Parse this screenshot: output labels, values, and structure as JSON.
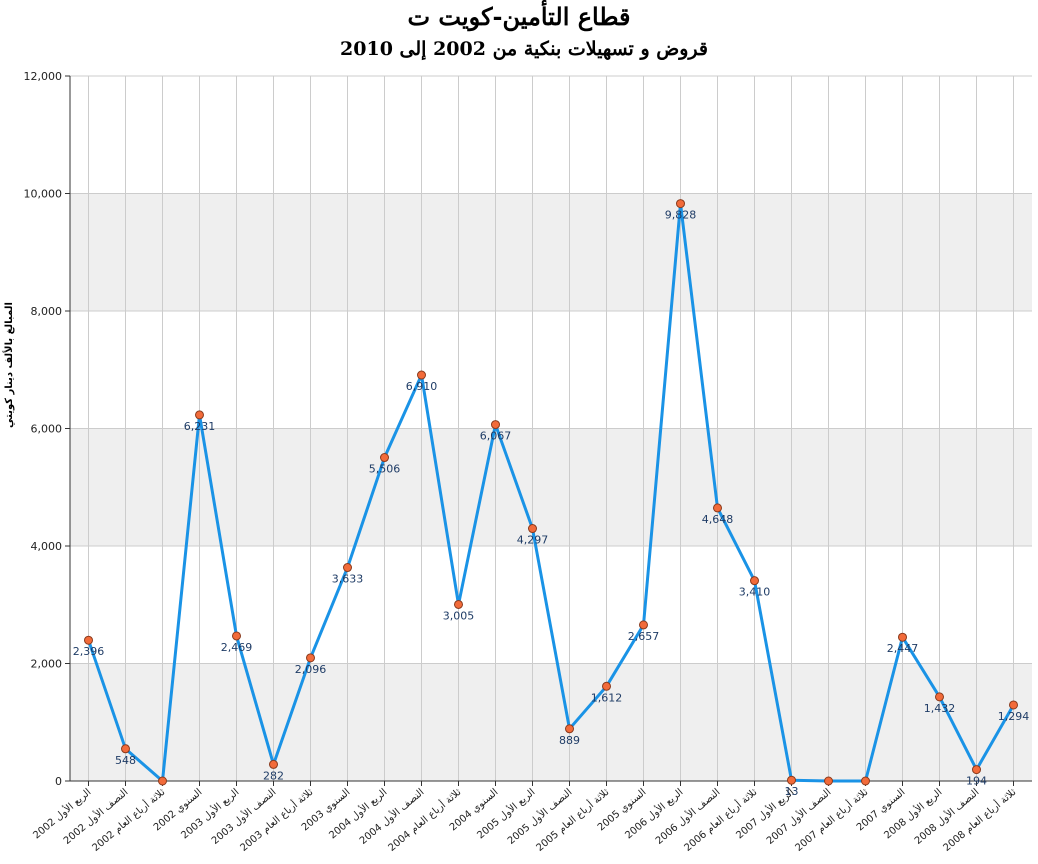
{
  "chart_data": {
    "type": "line",
    "title": "قطاع التأمين-كويت ت",
    "subtitle": "قروض و تسهيلات بنكية من 2002 إلى 2010",
    "ylabel": "المبالغ بالألف دينار كويتي",
    "xlabel": "",
    "ylim": [
      0,
      12000
    ],
    "yticks": [
      0,
      2000,
      4000,
      6000,
      8000,
      10000,
      12000
    ],
    "ytick_labels": [
      "0",
      "2,000",
      "4,000",
      "6,000",
      "8,000",
      "10,000",
      "12,000"
    ],
    "grid": true,
    "legend": "none",
    "colors": {
      "line": "#1a93e6",
      "marker_fill": "#f26b3a",
      "marker_stroke": "#8a3a1c",
      "label": "#1f3c66",
      "band": "#efefef",
      "grid": "#cccccc"
    },
    "categories": [
      "الربع الأول 2002",
      "النصف الأول 2002",
      "ثلاثة أرباع العام 2002",
      "السنوي 2002",
      "الربع الأول 2003",
      "النصف الأول 2003",
      "ثلاثة أرباع العام 2003",
      "السنوي 2003",
      "الربع الأول 2004",
      "النصف الأول 2004",
      "ثلاثة أرباع العام 2004",
      "السنوي 2004",
      "الربع الأول 2005",
      "النصف الأول 2005",
      "ثلاثة أرباع العام 2005",
      "السنوي 2005",
      "الربع الأول 2006",
      "النصف الأول 2006",
      "ثلاثة أرباع العام 2006",
      "الربع الأول 2007",
      "النصف الأول 2007",
      "ثلاثة أرباع العام 2007",
      "السنوي 2007",
      "الربع الأول 2008",
      "النصف الأول 2008",
      "ثلاثة أرباع العام 2008"
    ],
    "series": [
      {
        "values": [
          2396,
          548,
          0,
          6231,
          2469,
          282,
          2096,
          3633,
          5506,
          6910,
          3005,
          6067,
          4297,
          889,
          1612,
          2657,
          9828,
          4648,
          3410,
          13,
          0,
          0,
          2447,
          1432,
          194,
          1294
        ],
        "labels": [
          "2,396",
          "548",
          "",
          "6,231",
          "2,469",
          "282",
          "2,096",
          "3,633",
          "5,506",
          "6,910",
          "3,005",
          "6,067",
          "4,297",
          "889",
          "1,612",
          "2,657",
          "9,828",
          "4,648",
          "3,410",
          "13",
          "",
          "",
          "2,447",
          "1,432",
          "194",
          "1,294"
        ]
      }
    ]
  }
}
